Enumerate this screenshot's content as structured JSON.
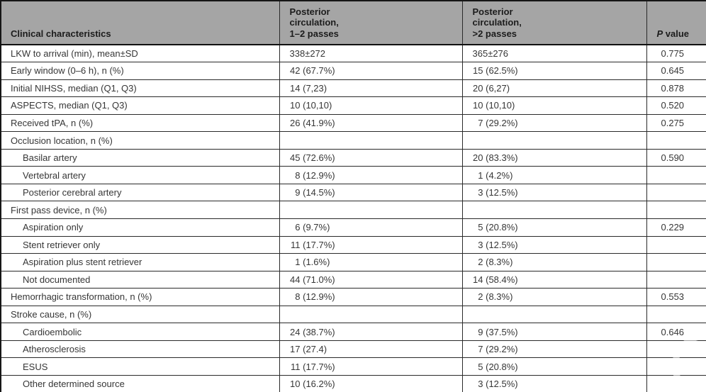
{
  "colors": {
    "header_bg": "#a5a5a5",
    "border": "#2a2a2a",
    "body_text": "#363636"
  },
  "icons": {
    "watermark_ring": "faint-white-circle"
  },
  "table": {
    "header": {
      "col1": "Clinical characteristics",
      "col2": "Posterior\ncirculation,\n1–2 passes",
      "col3": "Posterior\ncirculation,\n>2 passes",
      "p_italic": "P",
      "p_rest": " value"
    },
    "rows": [
      {
        "label": "LKW to arrival (min), mean±SD",
        "indent": false,
        "passes_1_2": "338±272",
        "passes_gt2": "365±276",
        "p_value": "0.775"
      },
      {
        "label": "Early window (0–6 h), n (%)",
        "indent": false,
        "passes_1_2": "42 (67.7%)",
        "passes_gt2": "15 (62.5%)",
        "p_value": "0.645"
      },
      {
        "label": "Initial NIHSS, median (Q1, Q3)",
        "indent": false,
        "passes_1_2": "14 (7,23)",
        "passes_gt2": "20 (6,27)",
        "p_value": "0.878"
      },
      {
        "label": "ASPECTS, median (Q1, Q3)",
        "indent": false,
        "passes_1_2": "10 (10,10)",
        "passes_gt2": "10 (10,10)",
        "p_value": "0.520"
      },
      {
        "label": "Received tPA, n (%)",
        "indent": false,
        "passes_1_2": "26 (41.9%)",
        "passes_gt2": "7 (29.2%)",
        "p_value": "0.275"
      },
      {
        "label": "Occlusion location, n (%)",
        "indent": false,
        "passes_1_2": "",
        "passes_gt2": "",
        "p_value": ""
      },
      {
        "label": "Basilar artery",
        "indent": true,
        "passes_1_2": "45 (72.6%)",
        "passes_gt2": "20 (83.3%)",
        "p_value": "0.590"
      },
      {
        "label": "Vertebral artery",
        "indent": true,
        "passes_1_2": "8 (12.9%)",
        "passes_gt2": "1 (4.2%)",
        "p_value": ""
      },
      {
        "label": "Posterior cerebral artery",
        "indent": true,
        "passes_1_2": "9 (14.5%)",
        "passes_gt2": "3 (12.5%)",
        "p_value": ""
      },
      {
        "label": "First pass device, n (%)",
        "indent": false,
        "passes_1_2": "",
        "passes_gt2": "",
        "p_value": ""
      },
      {
        "label": "Aspiration only",
        "indent": true,
        "passes_1_2": "6 (9.7%)",
        "passes_gt2": "5 (20.8%)",
        "p_value": "0.229"
      },
      {
        "label": "Stent retriever only",
        "indent": true,
        "passes_1_2": "11 (17.7%)",
        "passes_gt2": "3 (12.5%)",
        "p_value": ""
      },
      {
        "label": "Aspiration plus stent retriever",
        "indent": true,
        "passes_1_2": "1 (1.6%)",
        "passes_gt2": "2 (8.3%)",
        "p_value": ""
      },
      {
        "label": "Not documented",
        "indent": true,
        "passes_1_2": "44 (71.0%)",
        "passes_gt2": "14 (58.4%)",
        "p_value": ""
      },
      {
        "label": "Hemorrhagic transformation, n (%)",
        "indent": false,
        "passes_1_2": "8 (12.9%)",
        "passes_gt2": "2 (8.3%)",
        "p_value": "0.553"
      },
      {
        "label": "Stroke cause, n (%)",
        "indent": false,
        "passes_1_2": "",
        "passes_gt2": "",
        "p_value": ""
      },
      {
        "label": "Cardioembolic",
        "indent": true,
        "passes_1_2": "24 (38.7%)",
        "passes_gt2": "9 (37.5%)",
        "p_value": "0.646"
      },
      {
        "label": "Atherosclerosis",
        "indent": true,
        "passes_1_2": "17 (27.4)",
        "passes_gt2": "7 (29.2%)",
        "p_value": ""
      },
      {
        "label": "ESUS",
        "indent": true,
        "passes_1_2": "11 (17.7%)",
        "passes_gt2": "5 (20.8%)",
        "p_value": ""
      },
      {
        "label": "Other determined source",
        "indent": true,
        "passes_1_2": "10 (16.2%)",
        "passes_gt2": "3 (12.5%)",
        "p_value": ""
      }
    ]
  }
}
